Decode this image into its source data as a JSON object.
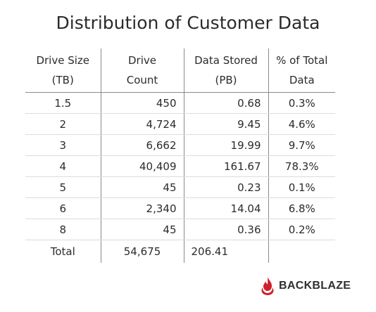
{
  "title": "Distribution of Customer Data",
  "table": {
    "headers": [
      [
        "Drive Size",
        "(TB)"
      ],
      [
        "Drive",
        "Count"
      ],
      [
        "Data Stored",
        "(PB)"
      ],
      [
        "% of Total",
        "Data"
      ]
    ],
    "rows": [
      [
        "1.5",
        "450",
        "0.68",
        "0.3%"
      ],
      [
        "2",
        "4,724",
        "9.45",
        "4.6%"
      ],
      [
        "3",
        "6,662",
        "19.99",
        "9.7%"
      ],
      [
        "4",
        "40,409",
        "161.67",
        "78.3%"
      ],
      [
        "5",
        "45",
        "0.23",
        "0.1%"
      ],
      [
        "6",
        "2,340",
        "14.04",
        "6.8%"
      ],
      [
        "8",
        "45",
        "0.36",
        "0.2%"
      ]
    ],
    "total": [
      "Total",
      "54,675",
      "206.41",
      ""
    ]
  },
  "logo": {
    "text": "BACKBLAZE",
    "icon": "flame-icon",
    "color": "#d0202e"
  }
}
